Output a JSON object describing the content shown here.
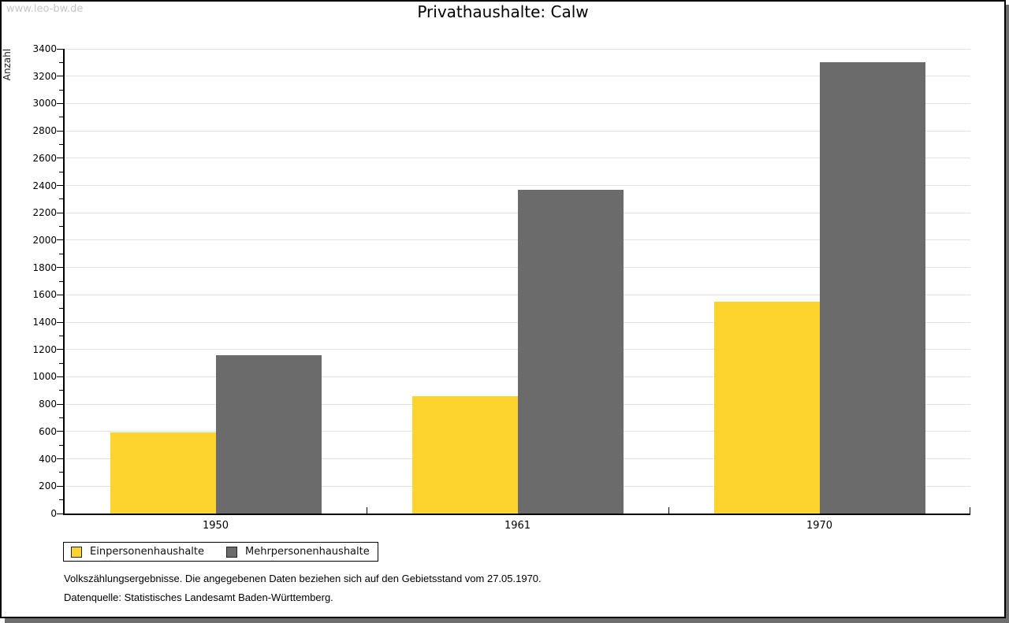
{
  "watermark": "www.leo-bw.de",
  "chart_data": {
    "type": "bar",
    "title": "Privathaushalte: Calw",
    "ylabel": "Anzahl",
    "xlabel": "",
    "categories": [
      "1950",
      "1961",
      "1970"
    ],
    "series": [
      {
        "name": "Einpersonenhaushalte",
        "color": "#fcd42d",
        "values": [
          595,
          860,
          1550
        ]
      },
      {
        "name": "Mehrpersonenhaushalte",
        "color": "#6b6b6b",
        "values": [
          1160,
          2370,
          3300
        ]
      }
    ],
    "ylim": [
      0,
      3400
    ],
    "ytick_step": 200,
    "yminor_step": 100,
    "grid": true,
    "legend_position": "bottom-left"
  },
  "footer": {
    "note1": "Volkszählungsergebnisse. Die angegebenen Daten beziehen sich auf den Gebietsstand vom 27.05.1970.",
    "note2": "Datenquelle: Statistisches Landesamt Baden-Württemberg."
  },
  "colors": {
    "grid": "#e2e2e2",
    "axis": "#000000",
    "watermark": "#c6c6c6",
    "shadow": "#6e6e6e",
    "background": "#ffffff"
  }
}
